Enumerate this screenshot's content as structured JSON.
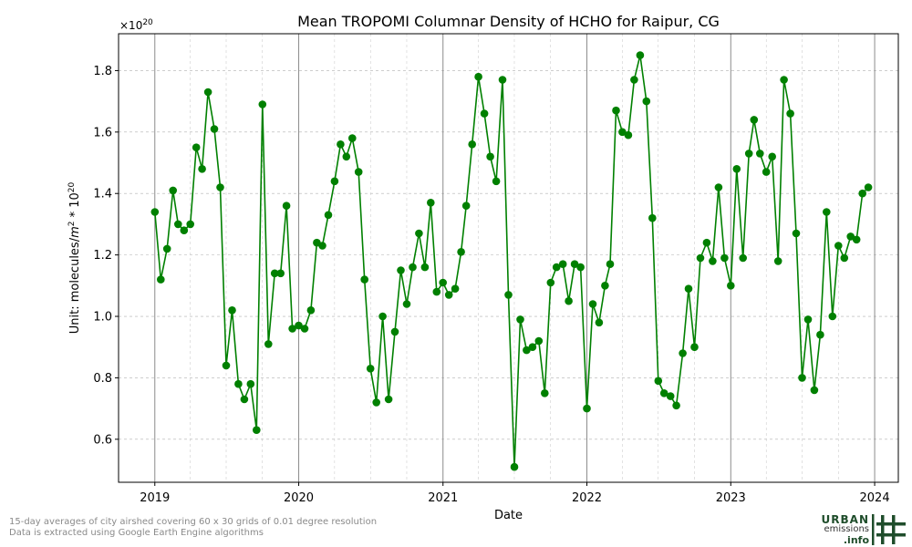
{
  "chart_data": {
    "type": "line",
    "title": "Mean TROPOMI Columnar Density of HCHO for Raipur, CG",
    "xlabel": "Date",
    "ylabel_prefix": "Unit: molecules/",
    "ylabel_unit": "m",
    "ylabel_exp": "2",
    "ylabel_mid": " * 10",
    "ylabel_exp2": "20",
    "offset_base": "×10",
    "offset_exp": "20",
    "xlim": [
      "2018-10-01",
      "2024-03-01"
    ],
    "ylim": [
      0.46,
      1.92
    ],
    "yticks": [
      0.6,
      0.8,
      1.0,
      1.2,
      1.4,
      1.6,
      1.8
    ],
    "ytick_labels": [
      "0.6",
      "0.8",
      "1.0",
      "1.2",
      "1.4",
      "1.6",
      "1.8"
    ],
    "xticks": [
      "2019-01-01",
      "2020-01-01",
      "2021-01-01",
      "2022-01-01",
      "2023-01-01",
      "2024-01-01"
    ],
    "xtick_labels": [
      "2019",
      "2020",
      "2021",
      "2022",
      "2023",
      "2024"
    ],
    "grid": true,
    "series_color": "#008000",
    "x": [
      "2019-01-01",
      "2019-01-16",
      "2019-02-01",
      "2019-02-16",
      "2019-03-01",
      "2019-03-16",
      "2019-04-01",
      "2019-04-16",
      "2019-05-01",
      "2019-05-16",
      "2019-06-01",
      "2019-06-16",
      "2019-07-01",
      "2019-07-16",
      "2019-08-01",
      "2019-08-16",
      "2019-09-01",
      "2019-09-16",
      "2019-10-01",
      "2019-10-16",
      "2019-11-01",
      "2019-11-16",
      "2019-12-01",
      "2019-12-16",
      "2020-01-01",
      "2020-01-16",
      "2020-02-01",
      "2020-02-16",
      "2020-03-01",
      "2020-03-16",
      "2020-04-01",
      "2020-04-16",
      "2020-05-01",
      "2020-05-16",
      "2020-06-01",
      "2020-06-16",
      "2020-07-01",
      "2020-07-16",
      "2020-08-01",
      "2020-08-16",
      "2020-09-01",
      "2020-09-16",
      "2020-10-01",
      "2020-10-16",
      "2020-11-01",
      "2020-11-16",
      "2020-12-01",
      "2020-12-16",
      "2021-01-01",
      "2021-01-16",
      "2021-02-01",
      "2021-02-16",
      "2021-03-01",
      "2021-03-16",
      "2021-04-01",
      "2021-04-16",
      "2021-05-01",
      "2021-05-16",
      "2021-06-01",
      "2021-06-16",
      "2021-07-01",
      "2021-07-16",
      "2021-08-01",
      "2021-08-16",
      "2021-09-01",
      "2021-09-16",
      "2021-10-01",
      "2021-10-16",
      "2021-11-01",
      "2021-11-16",
      "2021-12-01",
      "2021-12-16",
      "2022-01-01",
      "2022-01-16",
      "2022-02-01",
      "2022-02-16",
      "2022-03-01",
      "2022-03-16",
      "2022-04-01",
      "2022-04-16",
      "2022-05-01",
      "2022-05-16",
      "2022-06-01",
      "2022-06-16",
      "2022-07-01",
      "2022-07-16",
      "2022-08-01",
      "2022-08-16",
      "2022-09-01",
      "2022-09-16",
      "2022-10-01",
      "2022-10-16",
      "2022-11-01",
      "2022-11-16",
      "2022-12-01",
      "2022-12-16",
      "2023-01-01",
      "2023-01-16",
      "2023-02-01",
      "2023-02-16",
      "2023-03-01",
      "2023-03-16",
      "2023-04-01",
      "2023-04-16",
      "2023-05-01",
      "2023-05-16",
      "2023-06-01",
      "2023-06-16",
      "2023-07-01",
      "2023-07-16",
      "2023-08-01",
      "2023-08-16",
      "2023-09-01",
      "2023-09-16",
      "2023-10-01",
      "2023-10-16",
      "2023-11-01",
      "2023-11-16",
      "2023-12-01",
      "2023-12-16"
    ],
    "y": [
      1.34,
      1.12,
      1.22,
      1.41,
      1.3,
      1.28,
      1.3,
      1.55,
      1.48,
      1.73,
      1.61,
      1.42,
      0.84,
      1.02,
      0.78,
      0.73,
      0.78,
      0.63,
      1.69,
      0.91,
      1.14,
      1.14,
      1.36,
      0.96,
      0.97,
      0.96,
      1.02,
      1.24,
      1.23,
      1.33,
      1.44,
      1.56,
      1.52,
      1.58,
      1.47,
      1.12,
      0.83,
      0.72,
      1.0,
      0.73,
      0.95,
      1.15,
      1.04,
      1.16,
      1.27,
      1.16,
      1.37,
      1.08,
      1.11,
      1.07,
      1.09,
      1.21,
      1.36,
      1.56,
      1.78,
      1.66,
      1.52,
      1.44,
      1.77,
      1.07,
      0.51,
      0.99,
      0.89,
      0.9,
      0.92,
      0.75,
      1.11,
      1.16,
      1.17,
      1.05,
      1.17,
      1.16,
      0.7,
      1.04,
      0.98,
      1.1,
      1.17,
      1.67,
      1.6,
      1.59,
      1.77,
      1.85,
      1.7,
      1.32,
      0.79,
      0.75,
      0.74,
      0.71,
      0.88,
      1.09,
      0.9,
      1.19,
      1.24,
      1.18,
      1.42,
      1.19,
      1.1,
      1.48,
      1.19,
      1.53,
      1.64,
      1.53,
      1.47,
      1.52,
      1.18,
      1.77,
      1.66,
      1.27,
      0.8,
      0.99,
      0.76,
      0.94,
      1.34,
      1.0,
      1.23,
      1.19,
      1.26,
      1.25,
      1.4,
      1.42
    ]
  },
  "footnote": {
    "line1": "15-day averages of city airshed covering 60 x 30 grids of 0.01 degree resolution",
    "line2": "Data is extracted using Google Earth Engine algorithms"
  },
  "logo": {
    "word1": "URBAN",
    "word2": "emissions",
    "word3": ".info"
  }
}
